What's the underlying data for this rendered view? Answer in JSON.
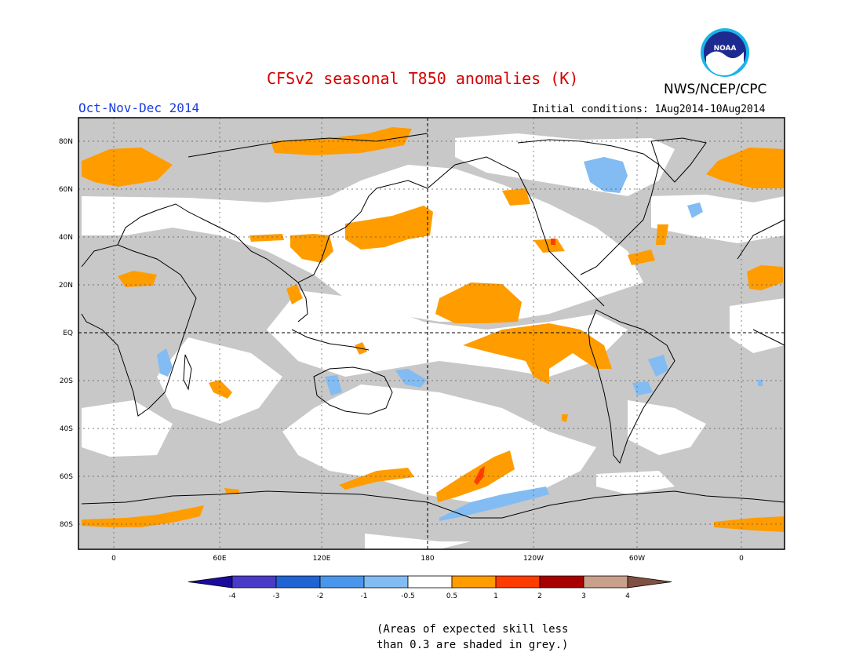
{
  "header": {
    "title": "CFSv2 seasonal T850 anomalies (K)",
    "agency": "NWS/NCEP/CPC",
    "logo_text": "NOAA",
    "season": "Oct-Nov-Dec 2014",
    "initial_conditions": "Initial conditions: 1Aug2014-10Aug2014"
  },
  "map": {
    "lat_labels": [
      "80N",
      "60N",
      "40N",
      "20N",
      "EQ",
      "20S",
      "40S",
      "60S",
      "80S"
    ],
    "lon_labels": [
      "0",
      "60E",
      "120E",
      "180",
      "120W",
      "60W",
      "0"
    ],
    "colors": {
      "land_outline": "#000000",
      "low_skill": "#c8c8c8",
      "ocean": "#ffffff"
    }
  },
  "colorbar": {
    "tick_labels": [
      "-4",
      "-3",
      "-2",
      "-1",
      "-0.5",
      "0.5",
      "1",
      "2",
      "3",
      "4"
    ],
    "colors": [
      "#1a0aa0",
      "#4a3ac8",
      "#1f64d2",
      "#4a96ec",
      "#82bcf2",
      "#ffffff",
      "#ff9c00",
      "#ff3c00",
      "#a80000",
      "#c8a08c",
      "#805040"
    ]
  },
  "footnote": {
    "line1": "(Areas of expected skill less",
    "line2": "than 0.3 are shaded in grey.)"
  }
}
